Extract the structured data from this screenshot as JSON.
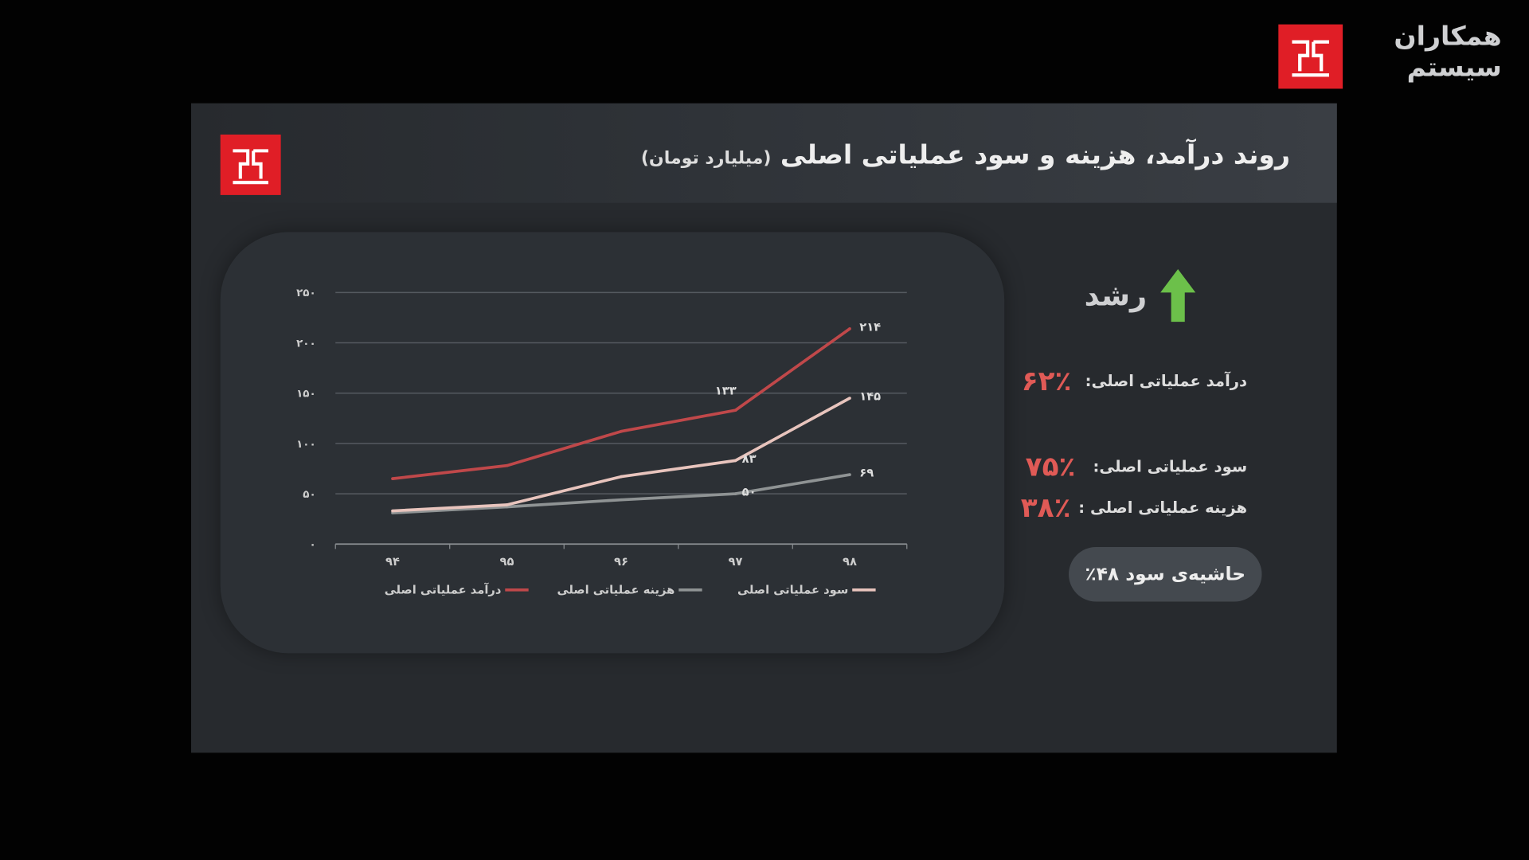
{
  "brand": {
    "name": "همکاران سیستم",
    "color": "#e01e26"
  },
  "slide": {
    "title": "روند درآمد، هزینه و سود عملیاتی اصلی",
    "unit": "(میلیارد تومان)"
  },
  "growth": {
    "label": "رشد",
    "icon": "arrow-up-icon",
    "icon_color": "#6cc04a",
    "items": [
      {
        "label": "درآمد عملیاتی اصلی:",
        "value": "۶۲٪"
      },
      {
        "label": "سود عملیاتی اصلی:",
        "value": "۷۵٪"
      },
      {
        "label": "هزینه عملیاتی اصلی :",
        "value": "۳۸٪"
      }
    ],
    "margin": "حاشیه‌ی سود  ۴۸٪"
  },
  "chart_data": {
    "type": "line",
    "categories": [
      "۹۴",
      "۹۵",
      "۹۶",
      "۹۷",
      "۹۸"
    ],
    "ylim": [
      0,
      250
    ],
    "yticks": [
      {
        "v": 0,
        "label": "۰"
      },
      {
        "v": 50,
        "label": "۵۰"
      },
      {
        "v": 100,
        "label": "۱۰۰"
      },
      {
        "v": 150,
        "label": "۱۵۰"
      },
      {
        "v": 200,
        "label": "۲۰۰"
      },
      {
        "v": 250,
        "label": "۲۵۰"
      }
    ],
    "grid": true,
    "legend_position": "bottom",
    "series": [
      {
        "name": "درآمد عملیاتی اصلی",
        "color": "#c0484a",
        "values": [
          65,
          78,
          112,
          133,
          214
        ],
        "labels": {
          "3": "۱۳۳",
          "4": "۲۱۴"
        }
      },
      {
        "name": "هزینه عملیاتی اصلی",
        "color": "#8f9394",
        "values": [
          31,
          37,
          44,
          50,
          69
        ],
        "labels": {
          "3": "۵۰",
          "4": "۶۹"
        }
      },
      {
        "name": "سود عملیاتی اصلی",
        "color": "#e8c4bd",
        "values": [
          33,
          39,
          67,
          83,
          145
        ],
        "labels": {
          "3": "۸۳",
          "4": "۱۴۵"
        }
      }
    ]
  }
}
